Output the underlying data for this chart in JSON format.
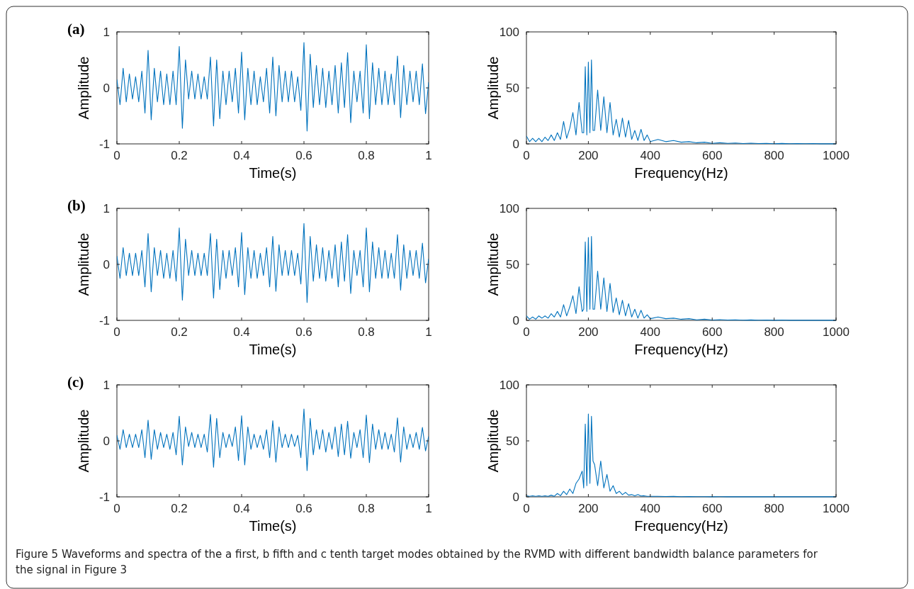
{
  "chart_data": [
    {
      "type": "line",
      "title": "(a)",
      "xlabel": "Time(s)",
      "ylabel": "Amplitude",
      "xlim": [
        0,
        1
      ],
      "xticks": [
        0,
        0.2,
        0.4,
        0.6,
        0.8,
        1
      ],
      "ylim": [
        -1,
        1
      ],
      "yticks": [
        -1,
        0,
        1
      ],
      "x": [
        0,
        0.01,
        0.02,
        0.03,
        0.04,
        0.05,
        0.06,
        0.07,
        0.08,
        0.09,
        0.1,
        0.11,
        0.12,
        0.13,
        0.14,
        0.15,
        0.16,
        0.17,
        0.18,
        0.19,
        0.2,
        0.21,
        0.22,
        0.23,
        0.24,
        0.25,
        0.26,
        0.27,
        0.28,
        0.29,
        0.3,
        0.31,
        0.32,
        0.33,
        0.34,
        0.35,
        0.36,
        0.37,
        0.38,
        0.39,
        0.4,
        0.41,
        0.42,
        0.43,
        0.44,
        0.45,
        0.46,
        0.47,
        0.48,
        0.49,
        0.5,
        0.51,
        0.52,
        0.53,
        0.54,
        0.55,
        0.56,
        0.57,
        0.58,
        0.59,
        0.6,
        0.61,
        0.62,
        0.63,
        0.64,
        0.65,
        0.66,
        0.67,
        0.68,
        0.69,
        0.7,
        0.71,
        0.72,
        0.73,
        0.74,
        0.75,
        0.76,
        0.77,
        0.78,
        0.79,
        0.8,
        0.81,
        0.82,
        0.83,
        0.84,
        0.85,
        0.86,
        0.87,
        0.88,
        0.89,
        0.9,
        0.91,
        0.92,
        0.93,
        0.94,
        0.95,
        0.96,
        0.97,
        0.98,
        0.99,
        1
      ],
      "series": [
        {
          "color": "#0072bd",
          "values": [
            0.15,
            -0.3,
            0.35,
            -0.25,
            0.25,
            -0.2,
            0.2,
            -0.25,
            0.3,
            -0.45,
            0.67,
            -0.57,
            0.35,
            -0.25,
            0.3,
            -0.3,
            0.25,
            -0.3,
            0.3,
            -0.3,
            0.74,
            -0.72,
            0.5,
            -0.2,
            0.3,
            -0.2,
            0.25,
            -0.2,
            0.2,
            -0.2,
            0.55,
            -0.68,
            0.5,
            -0.55,
            0.3,
            -0.3,
            0.3,
            -0.25,
            0.35,
            -0.45,
            0.64,
            -0.57,
            0.35,
            -0.3,
            0.3,
            -0.3,
            0.2,
            -0.25,
            0.35,
            -0.45,
            0.55,
            -0.5,
            0.4,
            -0.25,
            0.3,
            -0.25,
            0.3,
            -0.25,
            0.2,
            -0.4,
            0.81,
            -0.77,
            0.6,
            -0.35,
            0.4,
            -0.3,
            0.35,
            -0.35,
            0.3,
            -0.3,
            0.4,
            -0.45,
            0.45,
            -0.35,
            0.63,
            -0.62,
            0.3,
            -0.25,
            0.3,
            -0.45,
            0.77,
            -0.55,
            0.45,
            -0.3,
            0.35,
            -0.3,
            0.3,
            -0.3,
            0.25,
            -0.3,
            0.57,
            -0.53,
            0.4,
            -0.3,
            0.3,
            -0.25,
            0.3,
            -0.3,
            0.43,
            -0.46,
            0.1
          ]
        }
      ]
    },
    {
      "type": "line",
      "xlabel": "Frequency(Hz)",
      "ylabel": "Amplitude",
      "xlim": [
        0,
        1000
      ],
      "xticks": [
        0,
        200,
        400,
        600,
        800,
        1000
      ],
      "ylim": [
        0,
        100
      ],
      "yticks": [
        0,
        50,
        100
      ],
      "x": [
        0,
        10,
        20,
        30,
        40,
        50,
        60,
        70,
        80,
        90,
        100,
        110,
        120,
        130,
        140,
        150,
        160,
        170,
        180,
        185,
        190,
        195,
        200,
        205,
        210,
        215,
        220,
        230,
        240,
        250,
        260,
        270,
        280,
        290,
        300,
        310,
        320,
        330,
        340,
        350,
        360,
        370,
        380,
        390,
        400,
        425,
        450,
        475,
        500,
        525,
        550,
        575,
        600,
        625,
        650,
        675,
        700,
        725,
        750,
        775,
        800,
        825,
        850,
        875,
        900,
        925,
        950,
        975,
        1000
      ],
      "series": [
        {
          "color": "#0072bd",
          "values": [
            7,
            2,
            5,
            2,
            5,
            2,
            6,
            3,
            8,
            3,
            10,
            4,
            20,
            5,
            14,
            28,
            8,
            37,
            10,
            10,
            69,
            8,
            73,
            10,
            75,
            12,
            12,
            48,
            12,
            42,
            10,
            37,
            8,
            22,
            6,
            23,
            6,
            21,
            4,
            12,
            3,
            13,
            3,
            8,
            2,
            4,
            2,
            3,
            1.5,
            2,
            1,
            1.5,
            0.5,
            1,
            0.5,
            0.8,
            0.3,
            0.6,
            0.3,
            0.5,
            0.2,
            0.4,
            0.2,
            0.3,
            0.2,
            0.3,
            0.1,
            0.2,
            0.1
          ]
        }
      ]
    },
    {
      "type": "line",
      "title": "(b)",
      "xlabel": "Time(s)",
      "ylabel": "Amplitude",
      "xlim": [
        0,
        1
      ],
      "xticks": [
        0,
        0.2,
        0.4,
        0.6,
        0.8,
        1
      ],
      "ylim": [
        -1,
        1
      ],
      "yticks": [
        -1,
        0,
        1
      ],
      "x": [
        0,
        0.01,
        0.02,
        0.03,
        0.04,
        0.05,
        0.06,
        0.07,
        0.08,
        0.09,
        0.1,
        0.11,
        0.12,
        0.13,
        0.14,
        0.15,
        0.16,
        0.17,
        0.18,
        0.19,
        0.2,
        0.21,
        0.22,
        0.23,
        0.24,
        0.25,
        0.26,
        0.27,
        0.28,
        0.29,
        0.3,
        0.31,
        0.32,
        0.33,
        0.34,
        0.35,
        0.36,
        0.37,
        0.38,
        0.39,
        0.4,
        0.41,
        0.42,
        0.43,
        0.44,
        0.45,
        0.46,
        0.47,
        0.48,
        0.49,
        0.5,
        0.51,
        0.52,
        0.53,
        0.54,
        0.55,
        0.56,
        0.57,
        0.58,
        0.59,
        0.6,
        0.61,
        0.62,
        0.63,
        0.64,
        0.65,
        0.66,
        0.67,
        0.68,
        0.69,
        0.7,
        0.71,
        0.72,
        0.73,
        0.74,
        0.75,
        0.76,
        0.77,
        0.78,
        0.79,
        0.8,
        0.81,
        0.82,
        0.83,
        0.84,
        0.85,
        0.86,
        0.87,
        0.88,
        0.89,
        0.9,
        0.91,
        0.92,
        0.93,
        0.94,
        0.95,
        0.96,
        0.97,
        0.98,
        0.99,
        1
      ],
      "series": [
        {
          "color": "#0072bd",
          "values": [
            0.15,
            -0.25,
            0.3,
            -0.2,
            0.2,
            -0.2,
            0.2,
            -0.2,
            0.25,
            -0.4,
            0.55,
            -0.49,
            0.3,
            -0.2,
            0.25,
            -0.25,
            0.2,
            -0.25,
            0.25,
            -0.3,
            0.65,
            -0.64,
            0.45,
            -0.2,
            0.25,
            -0.2,
            0.2,
            -0.2,
            0.2,
            -0.2,
            0.55,
            -0.6,
            0.45,
            -0.45,
            0.25,
            -0.25,
            0.25,
            -0.2,
            0.3,
            -0.4,
            0.57,
            -0.54,
            0.3,
            -0.25,
            0.25,
            -0.25,
            0.2,
            -0.2,
            0.3,
            -0.4,
            0.5,
            -0.48,
            0.35,
            -0.2,
            0.25,
            -0.2,
            0.25,
            -0.2,
            0.2,
            -0.35,
            0.73,
            -0.68,
            0.5,
            -0.3,
            0.35,
            -0.25,
            0.3,
            -0.3,
            0.25,
            -0.25,
            0.35,
            -0.4,
            0.4,
            -0.3,
            0.53,
            -0.52,
            0.25,
            -0.2,
            0.25,
            -0.4,
            0.65,
            -0.49,
            0.4,
            -0.25,
            0.3,
            -0.25,
            0.25,
            -0.25,
            0.2,
            -0.25,
            0.53,
            -0.46,
            0.35,
            -0.25,
            0.25,
            -0.2,
            0.25,
            -0.25,
            0.38,
            -0.33,
            0.1
          ]
        }
      ]
    },
    {
      "type": "line",
      "xlabel": "Frequency(Hz)",
      "ylabel": "Amplitude",
      "xlim": [
        0,
        1000
      ],
      "xticks": [
        0,
        200,
        400,
        600,
        800,
        1000
      ],
      "ylim": [
        0,
        100
      ],
      "yticks": [
        0,
        50,
        100
      ],
      "x": [
        0,
        10,
        20,
        30,
        40,
        50,
        60,
        70,
        80,
        90,
        100,
        110,
        120,
        130,
        140,
        150,
        160,
        170,
        180,
        185,
        190,
        195,
        200,
        205,
        210,
        215,
        220,
        230,
        240,
        250,
        260,
        270,
        280,
        290,
        300,
        310,
        320,
        330,
        340,
        350,
        360,
        370,
        380,
        390,
        400,
        425,
        450,
        475,
        500,
        525,
        550,
        575,
        600,
        625,
        650,
        675,
        700,
        725,
        750,
        775,
        800,
        825,
        850,
        875,
        900,
        925,
        950,
        975,
        1000
      ],
      "series": [
        {
          "color": "#0072bd",
          "values": [
            4,
            1,
            3,
            1,
            4,
            2,
            4,
            2,
            6,
            3,
            8,
            3,
            14,
            4,
            12,
            22,
            6,
            30,
            8,
            10,
            70,
            8,
            74,
            10,
            75,
            10,
            10,
            44,
            10,
            38,
            8,
            33,
            7,
            20,
            5,
            18,
            4,
            15,
            3,
            10,
            2,
            9,
            2,
            5,
            1.5,
            3,
            1.5,
            2,
            1,
            1.5,
            0.5,
            1,
            0.3,
            0.6,
            0.3,
            0.5,
            0.2,
            0.4,
            0.2,
            0.3,
            0.1,
            0.3,
            0.1,
            0.2,
            0.1,
            0.2,
            0.1,
            0.1,
            0.1
          ]
        }
      ]
    },
    {
      "type": "line",
      "title": "(c)",
      "xlabel": "Time(s)",
      "ylabel": "Amplitude",
      "xlim": [
        0,
        1
      ],
      "xticks": [
        0,
        0.2,
        0.4,
        0.6,
        0.8,
        1
      ],
      "ylim": [
        -1,
        1
      ],
      "yticks": [
        -1,
        0,
        1
      ],
      "x": [
        0,
        0.01,
        0.02,
        0.03,
        0.04,
        0.05,
        0.06,
        0.07,
        0.08,
        0.09,
        0.1,
        0.11,
        0.12,
        0.13,
        0.14,
        0.15,
        0.16,
        0.17,
        0.18,
        0.19,
        0.2,
        0.21,
        0.22,
        0.23,
        0.24,
        0.25,
        0.26,
        0.27,
        0.28,
        0.29,
        0.3,
        0.31,
        0.32,
        0.33,
        0.34,
        0.35,
        0.36,
        0.37,
        0.38,
        0.39,
        0.4,
        0.41,
        0.42,
        0.43,
        0.44,
        0.45,
        0.46,
        0.47,
        0.48,
        0.49,
        0.5,
        0.51,
        0.52,
        0.53,
        0.54,
        0.55,
        0.56,
        0.57,
        0.58,
        0.59,
        0.6,
        0.61,
        0.62,
        0.63,
        0.64,
        0.65,
        0.66,
        0.67,
        0.68,
        0.69,
        0.7,
        0.71,
        0.72,
        0.73,
        0.74,
        0.75,
        0.76,
        0.77,
        0.78,
        0.79,
        0.8,
        0.81,
        0.82,
        0.83,
        0.84,
        0.85,
        0.86,
        0.87,
        0.88,
        0.89,
        0.9,
        0.91,
        0.92,
        0.93,
        0.94,
        0.95,
        0.96,
        0.97,
        0.98,
        0.99,
        1
      ],
      "series": [
        {
          "color": "#0072bd",
          "values": [
            0.1,
            -0.15,
            0.2,
            -0.12,
            0.12,
            -0.12,
            0.12,
            -0.12,
            0.2,
            -0.3,
            0.37,
            -0.33,
            0.2,
            -0.15,
            0.15,
            -0.12,
            0.12,
            -0.15,
            0.15,
            -0.25,
            0.44,
            -0.43,
            0.25,
            -0.1,
            0.15,
            -0.12,
            0.12,
            -0.12,
            0.12,
            -0.2,
            0.47,
            -0.47,
            0.4,
            -0.3,
            0.15,
            -0.12,
            0.12,
            -0.1,
            0.25,
            -0.35,
            0.45,
            -0.43,
            0.25,
            -0.15,
            0.12,
            -0.12,
            0.1,
            -0.15,
            0.2,
            -0.3,
            0.36,
            -0.38,
            0.25,
            -0.12,
            0.12,
            -0.12,
            0.12,
            -0.1,
            0.1,
            -0.3,
            0.57,
            -0.53,
            0.4,
            -0.25,
            0.2,
            -0.15,
            0.2,
            -0.2,
            0.15,
            -0.15,
            0.25,
            -0.28,
            0.3,
            -0.25,
            0.35,
            -0.31,
            0.15,
            -0.12,
            0.2,
            -0.3,
            0.46,
            -0.39,
            0.3,
            -0.15,
            0.2,
            -0.15,
            0.15,
            -0.15,
            0.12,
            -0.2,
            0.41,
            -0.38,
            0.25,
            -0.15,
            0.12,
            -0.12,
            0.15,
            -0.15,
            0.24,
            -0.18,
            0.08
          ]
        }
      ]
    },
    {
      "type": "line",
      "xlabel": "Frequency(Hz)",
      "ylabel": "Amplitude",
      "xlim": [
        0,
        1000
      ],
      "xticks": [
        0,
        200,
        400,
        600,
        800,
        1000
      ],
      "ylim": [
        0,
        100
      ],
      "yticks": [
        0,
        50,
        100
      ],
      "annotations": [
        "Figure 5 Waveforms and spectra of the a first, b fifth and c tenth target modes obtained by the RVMD with different bandwidth balance parameters for the signal in Figure 3"
      ],
      "x": [
        0,
        10,
        20,
        30,
        40,
        50,
        60,
        70,
        80,
        90,
        100,
        110,
        120,
        130,
        140,
        150,
        160,
        170,
        180,
        185,
        190,
        195,
        200,
        205,
        210,
        215,
        220,
        230,
        240,
        250,
        260,
        270,
        280,
        290,
        300,
        310,
        320,
        330,
        340,
        350,
        360,
        370,
        380,
        390,
        400,
        425,
        450,
        475,
        500,
        525,
        550,
        575,
        600,
        625,
        650,
        675,
        700,
        725,
        750,
        775,
        800,
        825,
        850,
        875,
        900,
        925,
        950,
        975,
        1000
      ],
      "series": [
        {
          "color": "#0072bd",
          "values": [
            1,
            0.5,
            1,
            0.5,
            1,
            0.5,
            1,
            0.5,
            1.5,
            0.5,
            3,
            1,
            5,
            2,
            7,
            3,
            12,
            16,
            23,
            8,
            65,
            10,
            74,
            12,
            72,
            32,
            29,
            10,
            32,
            8,
            20,
            5,
            10,
            3,
            5,
            2,
            4,
            1.5,
            2,
            1,
            2,
            0.8,
            1,
            0.5,
            0.5,
            0.5,
            0.3,
            0.4,
            0.2,
            0.3,
            0.2,
            0.2,
            0.1,
            0.2,
            0.1,
            0.1,
            0.1,
            0.1,
            0.1,
            0.1,
            0.1,
            0.1,
            0.1,
            0.1,
            0.1,
            0.1,
            0.1,
            0.1,
            0.1
          ]
        }
      ]
    }
  ]
}
